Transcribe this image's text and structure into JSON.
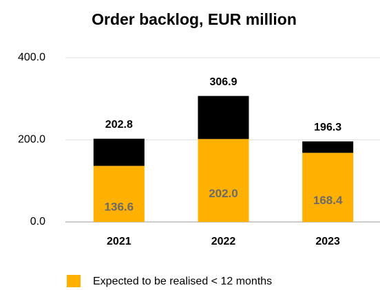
{
  "chart_data": {
    "type": "stacked_bar",
    "title": "Order backlog, EUR million",
    "categories": [
      "2021",
      "2022",
      "2023"
    ],
    "series": [
      {
        "name": "Expected to be realised < 12 months",
        "color": "#ffb000",
        "values": [
          136.6,
          202.0,
          168.4
        ],
        "value_labels": [
          "136.6",
          "202.0",
          "168.4"
        ]
      },
      {
        "color": "#000000",
        "values": [
          66.2,
          104.9,
          27.9
        ]
      }
    ],
    "totals": [
      202.8,
      306.9,
      196.3
    ],
    "ylim": [
      0,
      400
    ],
    "yticks": [
      {
        "value": 0,
        "label": "0.0"
      },
      {
        "value": 200,
        "label": "200.0"
      },
      {
        "value": 400,
        "label": "400.0"
      }
    ],
    "grid": true
  }
}
